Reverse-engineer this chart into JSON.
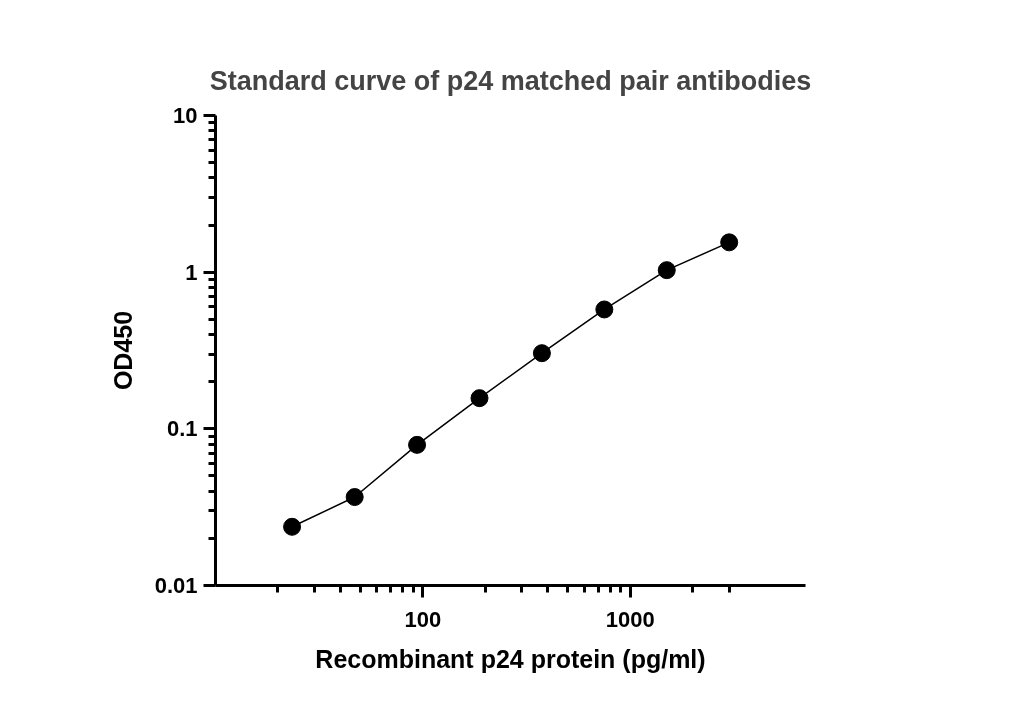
{
  "chart_data": {
    "type": "scatter",
    "title": "Standard curve of p24 matched pair antibodies",
    "xlabel": "Recombinant p24 protein (pg/ml)",
    "ylabel": "OD450",
    "log": "xy",
    "grid": false,
    "x": [
      23.4,
      46.9,
      93.75,
      187.5,
      375,
      750,
      1500,
      3000
    ],
    "series": [
      {
        "marker": "circle",
        "color": "#000000",
        "values": [
          0.0237,
          0.0367,
          0.079,
          0.157,
          0.304,
          0.578,
          1.03,
          1.55
        ]
      },
      {
        "type": "line",
        "color": "#000000",
        "values": [
          0.0237,
          0.0367,
          0.079,
          0.157,
          0.304,
          0.578,
          1.03,
          1.55
        ]
      }
    ],
    "xlim": [
      10,
      7000
    ],
    "ylim": [
      0.01,
      10
    ],
    "xticks": [
      {
        "value": 20,
        "label": null
      },
      {
        "value": 30,
        "label": null
      },
      {
        "value": 40,
        "label": null
      },
      {
        "value": 50,
        "label": null
      },
      {
        "value": 60,
        "label": null
      },
      {
        "value": 70,
        "label": null
      },
      {
        "value": 80,
        "label": null
      },
      {
        "value": 90,
        "label": null
      },
      100,
      {
        "value": 200,
        "label": null
      },
      {
        "value": 300,
        "label": null
      },
      {
        "value": 400,
        "label": null
      },
      {
        "value": 500,
        "label": null
      },
      {
        "value": 600,
        "label": null
      },
      {
        "value": 700,
        "label": null
      },
      {
        "value": 800,
        "label": null
      },
      {
        "value": 900,
        "label": null
      },
      1000,
      {
        "value": 2000,
        "label": null
      },
      {
        "value": 3000,
        "label": null
      }
    ],
    "yticks": [
      0.01,
      {
        "value": 0.02,
        "label": null
      },
      {
        "value": 0.03,
        "label": null
      },
      {
        "value": 0.04,
        "label": null
      },
      {
        "value": 0.05,
        "label": null
      },
      {
        "value": 0.06,
        "label": null
      },
      {
        "value": 0.07,
        "label": null
      },
      {
        "value": 0.08,
        "label": null
      },
      {
        "value": 0.09,
        "label": null
      },
      0.1,
      {
        "value": 0.2,
        "label": null
      },
      {
        "value": 0.3,
        "label": null
      },
      {
        "value": 0.4,
        "label": null
      },
      {
        "value": 0.5,
        "label": null
      },
      {
        "value": 0.6,
        "label": null
      },
      {
        "value": 0.7,
        "label": null
      },
      {
        "value": 0.8,
        "label": null
      },
      {
        "value": 0.9,
        "label": null
      },
      1,
      {
        "value": 2,
        "label": null
      },
      {
        "value": 3,
        "label": null
      },
      {
        "value": 4,
        "label": null
      },
      {
        "value": 5,
        "label": null
      },
      {
        "value": 6,
        "label": null
      },
      {
        "value": 7,
        "label": null
      },
      {
        "value": 8,
        "label": null
      },
      {
        "value": 9,
        "label": null
      },
      10
    ]
  }
}
